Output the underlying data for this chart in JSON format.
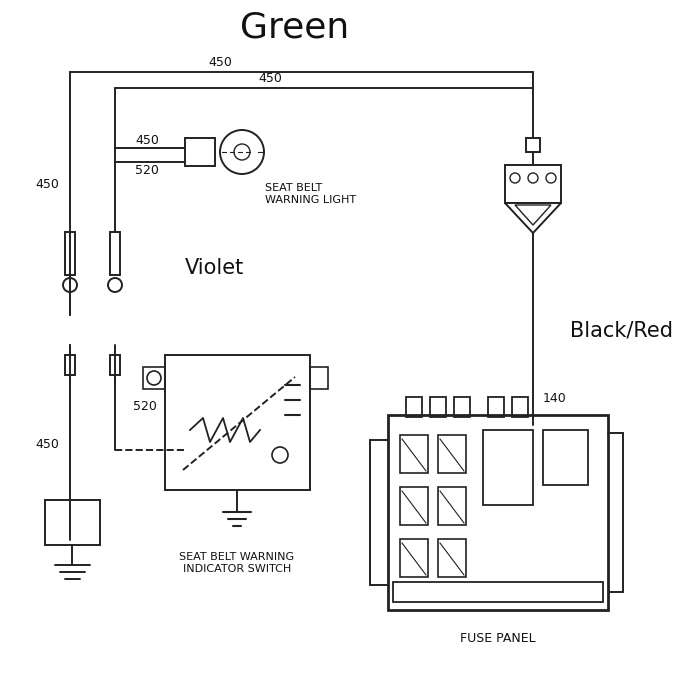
{
  "title": "Green",
  "bg_color": "#ffffff",
  "line_color": "#222222",
  "text_color": "#111111",
  "figsize": [
    6.9,
    7.0
  ],
  "dpi": 100,
  "xlim": [
    0,
    690
  ],
  "ylim": [
    0,
    700
  ]
}
